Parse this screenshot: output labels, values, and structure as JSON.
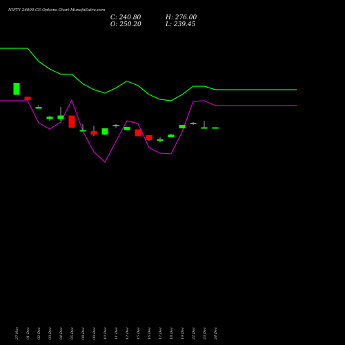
{
  "chart_data": {
    "type": "candlestick",
    "title": "NIFTY 26000  CE Options  Chart MunafaSutra.com",
    "summary": {
      "close_label": "C: 240.80",
      "open_label": "O: 250.20",
      "high_label": "H: 276.00",
      "low_label": "L: 239.45"
    },
    "up_color": "#00ff00",
    "down_color": "#ff0000",
    "ylim": [
      0,
      1
    ],
    "categories": [
      "27 Nov",
      "01 Dec",
      "02 Dec",
      "03 Dec",
      "04 Dec",
      "05 Dec",
      "08 Dec",
      "09 Dec",
      "10 Dec",
      "11 Dec",
      "12 Dec",
      "15 Dec",
      "16 Dec",
      "17 Dec",
      "18 Dec",
      "19 Dec",
      "22 Dec",
      "23 Dec",
      "24 Dec"
    ],
    "candles": [
      {
        "o": 0.725,
        "h": 0.76,
        "l": 0.725,
        "c": 0.76
      },
      {
        "o": 0.72,
        "h": 0.72,
        "l": 0.71,
        "c": 0.71
      },
      {
        "o": 0.685,
        "h": 0.695,
        "l": 0.685,
        "c": 0.69
      },
      {
        "o": 0.655,
        "h": 0.665,
        "l": 0.65,
        "c": 0.662
      },
      {
        "o": 0.655,
        "h": 0.69,
        "l": 0.65,
        "c": 0.665
      },
      {
        "o": 0.665,
        "h": 0.665,
        "l": 0.63,
        "c": 0.63
      },
      {
        "o": 0.62,
        "h": 0.64,
        "l": 0.62,
        "c": 0.623
      },
      {
        "o": 0.62,
        "h": 0.634,
        "l": 0.606,
        "c": 0.61
      },
      {
        "o": 0.61,
        "h": 0.628,
        "l": 0.608,
        "c": 0.628
      },
      {
        "o": 0.635,
        "h": 0.64,
        "l": 0.63,
        "c": 0.638
      },
      {
        "o": 0.623,
        "h": 0.633,
        "l": 0.623,
        "c": 0.632
      },
      {
        "o": 0.625,
        "h": 0.625,
        "l": 0.605,
        "c": 0.605
      },
      {
        "o": 0.608,
        "h": 0.608,
        "l": 0.592,
        "c": 0.594
      },
      {
        "o": 0.592,
        "h": 0.603,
        "l": 0.588,
        "c": 0.596
      },
      {
        "o": 0.602,
        "h": 0.612,
        "l": 0.602,
        "c": 0.61
      },
      {
        "o": 0.628,
        "h": 0.638,
        "l": 0.628,
        "c": 0.638
      },
      {
        "o": 0.64,
        "h": 0.646,
        "l": 0.638,
        "c": 0.644
      },
      {
        "o": 0.631,
        "h": 0.65,
        "l": 0.631,
        "c": 0.631
      },
      {
        "o": 0.631,
        "h": 0.631,
        "l": 0.631,
        "c": 0.631
      }
    ],
    "series": [
      {
        "type": "line",
        "color": "#00ff00",
        "values": [
          0.86,
          0.86,
          0.822,
          0.8,
          0.785,
          0.785,
          0.757,
          0.74,
          0.73,
          0.745,
          0.765,
          0.752,
          0.726,
          0.712,
          0.708,
          0.726,
          0.75,
          0.75,
          0.74
        ]
      },
      {
        "type": "line",
        "color": "#cc00cc",
        "values": [
          0.708,
          0.708,
          0.644,
          0.626,
          0.646,
          0.71,
          0.62,
          0.56,
          0.53,
          0.59,
          0.65,
          0.642,
          0.572,
          0.556,
          0.554,
          0.618,
          0.706,
          0.708,
          0.694
        ]
      }
    ]
  }
}
